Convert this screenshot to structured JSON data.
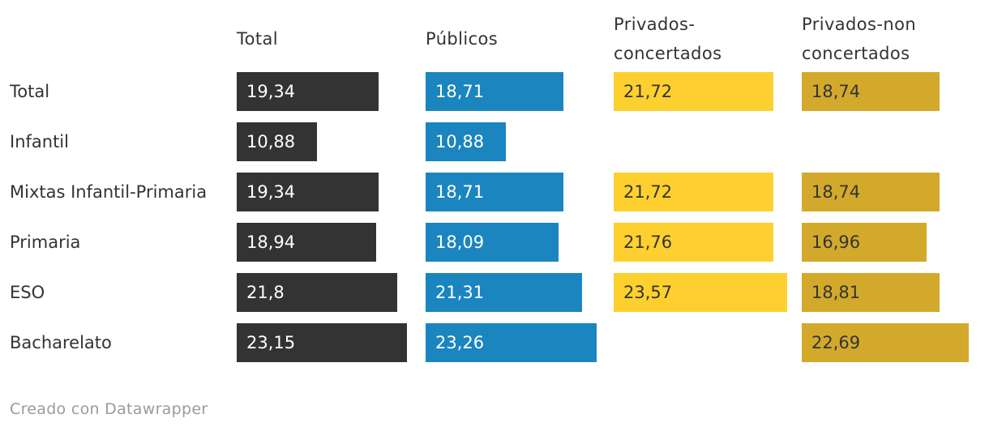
{
  "chart_data": {
    "type": "bar",
    "variant": "split-bars-horizontal",
    "categories": [
      "Total",
      "Infantil",
      "Mixtas Infantil-Primaria",
      "Primaria",
      "ESO",
      "Bacharelato"
    ],
    "series": [
      {
        "name": "Total",
        "color": "#333333",
        "label_color": "#ffffff",
        "values": [
          19.34,
          10.88,
          19.34,
          18.94,
          21.8,
          23.15
        ]
      },
      {
        "name": "Públicos",
        "color": "#1a85bf",
        "label_color": "#ffffff",
        "values": [
          18.71,
          10.88,
          18.71,
          18.09,
          21.31,
          23.26
        ]
      },
      {
        "name": "Privados-concertados",
        "color": "#fdd02f",
        "label_color": "#333333",
        "values": [
          21.72,
          null,
          21.72,
          21.76,
          23.57,
          null
        ]
      },
      {
        "name": "Privados-non concertados",
        "color": "#d3a92c",
        "label_color": "#333333",
        "values": [
          18.74,
          null,
          18.74,
          16.96,
          18.81,
          22.69
        ]
      }
    ],
    "value_format": "decimal-comma",
    "value_labels_inside_bars": true,
    "axis_hidden": true,
    "grid": false,
    "legend_position": "column-headers",
    "xlim": [
      0,
      24
    ]
  },
  "footer": {
    "credit": "Creado con Datawrapper"
  }
}
